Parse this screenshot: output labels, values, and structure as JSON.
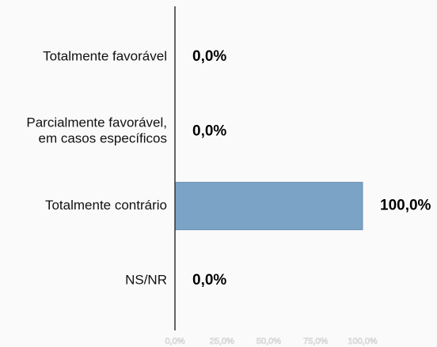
{
  "chart_data": {
    "type": "barh",
    "categories": [
      "Totalmente favorável",
      "Parcialmente favorável,\nem casos específicos",
      "Totalmente contrário",
      "NS/NR"
    ],
    "values": [
      0,
      0,
      100,
      0
    ],
    "value_labels": [
      "0,0%",
      "0,0%",
      "100,0%",
      "0,0%"
    ],
    "color": "#7ba3c6",
    "xlim": [
      0,
      100
    ],
    "xticks": [
      {
        "value": 0,
        "label": "0,0%"
      },
      {
        "value": 25,
        "label": "25,0%"
      },
      {
        "value": 50,
        "label": "50,0%"
      },
      {
        "value": 75,
        "label": "75,0%"
      },
      {
        "value": 100,
        "label": "100,0%"
      }
    ]
  }
}
